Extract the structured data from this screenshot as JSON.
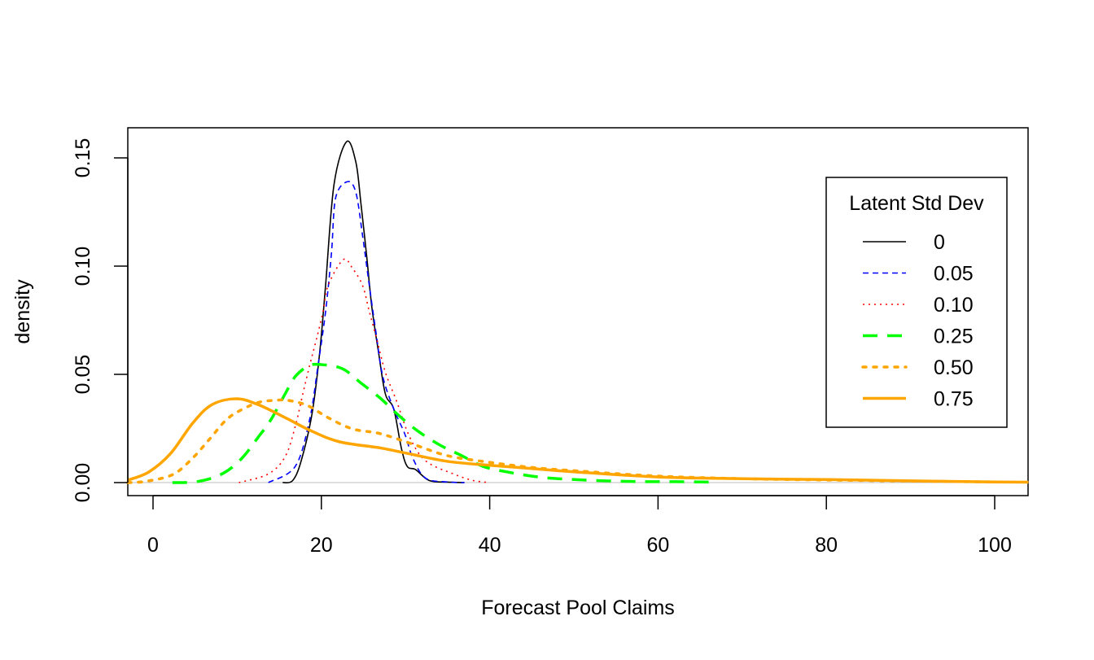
{
  "chart_data": {
    "type": "line",
    "title": "",
    "xlabel": "Forecast Pool Claims",
    "ylabel": "density",
    "xlim": [
      -3,
      104
    ],
    "ylim": [
      -0.006,
      0.163
    ],
    "xticks": [
      0,
      20,
      40,
      60,
      80,
      100
    ],
    "yticks": [
      0.0,
      0.05,
      0.1,
      0.15
    ],
    "xtick_labels": [
      "0",
      "20",
      "40",
      "60",
      "80",
      "100"
    ],
    "ytick_labels": [
      "0.00",
      "0.05",
      "0.10",
      "0.15"
    ],
    "grid": false,
    "reference_line": {
      "y": 0,
      "color": "#BEBEBE"
    },
    "legend": {
      "title": "Latent Std Dev",
      "placement": "right"
    },
    "series": [
      {
        "name": "0",
        "color": "#000000",
        "style": "solid",
        "width": "thin",
        "x": [
          15.4,
          16.6,
          17.6,
          18.9,
          19.8,
          20.5,
          21.5,
          23.0,
          24.1,
          24.7,
          25.4,
          26.0,
          26.8,
          27.6,
          28.6,
          29.5,
          30.2,
          31.2,
          32.8,
          35,
          37
        ],
        "y": [
          0,
          0.001,
          0.01,
          0.032,
          0.06,
          0.091,
          0.1376,
          0.1575,
          0.148,
          0.129,
          0.104,
          0.081,
          0.06,
          0.041,
          0.034,
          0.016,
          0.0075,
          0.006,
          0.001,
          0.0002,
          0
        ]
      },
      {
        "name": "0.05",
        "color": "#0000FF",
        "style": "dashed",
        "width": "thin",
        "x": [
          13.7,
          16.9,
          18.6,
          19.6,
          20.5,
          21.2,
          21.7,
          23.1,
          24.1,
          24.9,
          25.7,
          26.5,
          27.3,
          28.6,
          29.9,
          30.9,
          32.4,
          35,
          37
        ],
        "y": [
          0,
          0.0075,
          0.029,
          0.054,
          0.079,
          0.106,
          0.1316,
          0.139,
          0.134,
          0.114,
          0.091,
          0.069,
          0.049,
          0.034,
          0.0226,
          0.011,
          0.002,
          0.0003,
          0
        ]
      },
      {
        "name": "0.10",
        "color": "#FF0000",
        "style": "dotted",
        "width": "thin",
        "x": [
          10.2,
          13.7,
          15.7,
          16.9,
          17.8,
          18.6,
          19.4,
          20.2,
          20.8,
          22.6,
          23.7,
          24.9,
          25.7,
          26.6,
          27.6,
          28.9,
          30.5,
          32.4,
          35.7,
          38,
          40
        ],
        "y": [
          0,
          0.004,
          0.012,
          0.026,
          0.041,
          0.054,
          0.066,
          0.079,
          0.091,
          0.103,
          0.099,
          0.091,
          0.079,
          0.066,
          0.051,
          0.038,
          0.021,
          0.01,
          0.004,
          0.001,
          0
        ]
      },
      {
        "name": "0.25",
        "color": "#00FF00",
        "style": "dashed",
        "width": "thick",
        "x": [
          2.3,
          5.3,
          8.2,
          10.5,
          12.5,
          14.0,
          15.7,
          16.9,
          18.5,
          20.0,
          22.5,
          24.7,
          27.0,
          29.2,
          31.5,
          34.1,
          36.7,
          39.2,
          42.1,
          46,
          51,
          57,
          62,
          67
        ],
        "y": [
          0,
          0.0005,
          0.004,
          0.011,
          0.021,
          0.029,
          0.041,
          0.049,
          0.054,
          0.0545,
          0.0526,
          0.046,
          0.039,
          0.031,
          0.0237,
          0.0173,
          0.0124,
          0.0075,
          0.0049,
          0.0025,
          0.0012,
          0.0005,
          0.0004,
          0.0002
        ]
      },
      {
        "name": "0.50",
        "color": "#FFA500",
        "style": "dotted",
        "width": "thick",
        "x": [
          -3,
          -0.8,
          2.4,
          4.7,
          6.7,
          8.6,
          10.2,
          12.5,
          14.5,
          16.0,
          18.3,
          20.8,
          23.7,
          27.0,
          31.2,
          35.0,
          39.9,
          45,
          50,
          60,
          70,
          80,
          90,
          100
        ],
        "y": [
          0,
          0.0006,
          0.0038,
          0.0113,
          0.02,
          0.0286,
          0.033,
          0.037,
          0.038,
          0.038,
          0.0357,
          0.03,
          0.0248,
          0.0226,
          0.0173,
          0.0124,
          0.0094,
          0.007,
          0.0055,
          0.003,
          0.0018,
          0.0012,
          0.0007,
          0.0003
        ]
      },
      {
        "name": "0.75",
        "color": "#FFA500",
        "style": "solid",
        "width": "thick",
        "x": [
          -3,
          -0.5,
          2.1,
          4.7,
          7.0,
          9.9,
          12.5,
          15.7,
          18.9,
          22.2,
          27.0,
          30.2,
          35.0,
          40,
          45,
          50,
          60,
          70,
          80,
          90,
          100,
          104
        ],
        "y": [
          0.0011,
          0.0049,
          0.0135,
          0.0274,
          0.036,
          0.0387,
          0.036,
          0.03,
          0.0237,
          0.0188,
          0.016,
          0.0135,
          0.0098,
          0.008,
          0.0065,
          0.005,
          0.0026,
          0.0018,
          0.0014,
          0.0008,
          0.0003,
          0.0002
        ]
      }
    ]
  }
}
